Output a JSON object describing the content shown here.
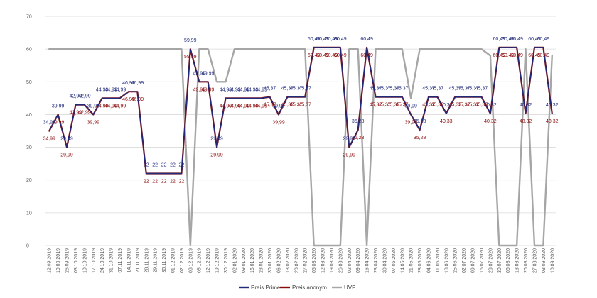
{
  "chart_data": {
    "type": "line",
    "title": "",
    "xlabel": "",
    "ylabel": "",
    "ylim": [
      0,
      70
    ],
    "yticks": [
      "0",
      "10",
      "20",
      "30",
      "40",
      "50",
      "60",
      "70"
    ],
    "grid": true,
    "legend_position": "bottom",
    "categories": [
      "12.09.2019",
      "19.09.2019",
      "26.09.2019",
      "03.10.2019",
      "10.10.2019",
      "17.10.2019",
      "24.10.2019",
      "31.10.2019",
      "07.11.2019",
      "14.11.2019",
      "21.11.2019",
      "28.11.2019",
      "29.11.2019",
      "30.11.2019",
      "01.12.2019",
      "02.12.2019",
      "03.12.2019",
      "05.12.2019",
      "12.12.2019",
      "19.12.2019",
      "30.12.2019",
      "02.01.2020",
      "09.01.2020",
      "16.01.2020",
      "23.01.2020",
      "30.01.2020",
      "06.02.2020",
      "13.02.2020",
      "20.02.2020",
      "27.02.2020",
      "05.03.2020",
      "12.03.2020",
      "19.03.2020",
      "26.03.2020",
      "02.04.2020",
      "09.04.2020",
      "16.04.2020",
      "23.04.2020",
      "30.04.2020",
      "07.05.2020",
      "14.05.2020",
      "21.05.2020",
      "28.05.2020",
      "04.06.2020",
      "11.06.2020",
      "18.06.2020",
      "25.06.2020",
      "02.07.2020",
      "09.07.2020",
      "16.07.2020",
      "23.07.2020",
      "30.07.2020",
      "06.08.2020",
      "13.08.2020",
      "20.08.2020",
      "27.08.2020",
      "03.09.2020",
      "10.09.2020"
    ],
    "series": [
      {
        "name": "Preis Prime",
        "color": "#1F2A7A",
        "values": [
          34.99,
          39.99,
          29.99,
          42.99,
          42.99,
          39.99,
          44.99,
          44.99,
          44.99,
          46.99,
          46.99,
          22,
          22,
          22,
          22,
          22,
          59.99,
          49.99,
          49.99,
          29.99,
          44.99,
          44.99,
          44.99,
          44.99,
          44.99,
          45.37,
          39.99,
          45.37,
          45.37,
          45.37,
          60.49,
          60.49,
          60.49,
          60.49,
          29.99,
          35.28,
          60.49,
          45.37,
          45.37,
          45.37,
          45.37,
          39.99,
          35.28,
          45.37,
          45.37,
          40.33,
          45.37,
          45.37,
          45.37,
          45.37,
          40.32,
          60.49,
          60.49,
          60.49,
          40.32,
          60.49,
          60.49,
          40.32
        ],
        "labels": [
          "34,99",
          "39,99",
          "29,99",
          "42,99",
          "42,99",
          "39,99",
          "44,99",
          "44,99",
          "44,99",
          "46,99",
          "46,99",
          "22",
          "22",
          "22",
          "22",
          "22",
          "59,99",
          "49,99",
          "49,99",
          "29,99",
          "44,99",
          "44,99",
          "44,99",
          "44,99",
          "44,99",
          "45,37",
          "39,99",
          "45,37",
          "45,37",
          "45,37",
          "60,49",
          "60,49",
          "60,49",
          "60,49",
          "29,99",
          "35,28",
          "60,49",
          "45,37",
          "45,37",
          "45,37",
          "45,37",
          "39,99",
          "35,28",
          "45,37",
          "45,37",
          "40,33",
          "45,37",
          "45,37",
          "45,37",
          "45,37",
          "40,32",
          "60,49",
          "60,49",
          "60,49",
          "40,32",
          "60,49",
          "60,49",
          "40,32"
        ]
      },
      {
        "name": "Preis anonym",
        "color": "#8B0A0A",
        "values": [
          34.99,
          39.99,
          29.99,
          42.99,
          42.99,
          39.99,
          44.99,
          44.99,
          44.99,
          46.99,
          46.99,
          22,
          22,
          22,
          22,
          22,
          59.99,
          49.99,
          49.99,
          29.99,
          44.99,
          44.99,
          44.99,
          44.99,
          44.99,
          45.37,
          39.99,
          45.37,
          45.37,
          45.37,
          60.49,
          60.49,
          60.49,
          60.49,
          29.99,
          35.28,
          60.49,
          45.37,
          45.37,
          45.37,
          45.37,
          39.99,
          35.28,
          45.37,
          45.37,
          40.33,
          45.37,
          45.37,
          45.37,
          45.37,
          40.32,
          60.49,
          60.49,
          60.49,
          40.32,
          60.49,
          60.49,
          40.32
        ],
        "labels": [
          "34,99",
          "39,99",
          "29,99",
          "42,99",
          "42,99",
          "39,99",
          "44,99",
          "44,99",
          "44,99",
          "46,99",
          "46,99",
          "22",
          "22",
          "22",
          "22",
          "22",
          "59,99",
          "49,99",
          "49,99",
          "29,99",
          "44,99",
          "44,99",
          "44,99",
          "44,99",
          "44,99",
          "45,37",
          "39,99",
          "45,37",
          "45,37",
          "45,37",
          "60,49",
          "60,49",
          "60,49",
          "60,49",
          "29,99",
          "35,28",
          "60,49",
          "45,37",
          "45,37",
          "45,37",
          "45,37",
          "39,99",
          "35,28",
          "45,37",
          "45,37",
          "40,33",
          "45,37",
          "45,37",
          "45,37",
          "45,37",
          "40,32",
          "60,49",
          "60,49",
          "60,49",
          "40,32",
          "60,49",
          "60,49",
          "40,32"
        ]
      },
      {
        "name": "UVP",
        "color": "#A6A6A6",
        "values": [
          60,
          60,
          60,
          60,
          60,
          60,
          60,
          60,
          60,
          60,
          60,
          60,
          60,
          60,
          60,
          60,
          0,
          60,
          60,
          50,
          50,
          60,
          60,
          60,
          60,
          60,
          60,
          60,
          60,
          60,
          0,
          0,
          0,
          0,
          60,
          60,
          0,
          60,
          60,
          60,
          60,
          45,
          60,
          60,
          60,
          60,
          60,
          60,
          60,
          60,
          58,
          0,
          0,
          0,
          60,
          0,
          0,
          58
        ]
      }
    ],
    "gridlines": [
      0,
      10,
      20,
      30,
      40,
      50,
      60,
      70
    ],
    "legend": [
      "Preis Prime",
      "Preis anonym",
      "UVP"
    ]
  }
}
